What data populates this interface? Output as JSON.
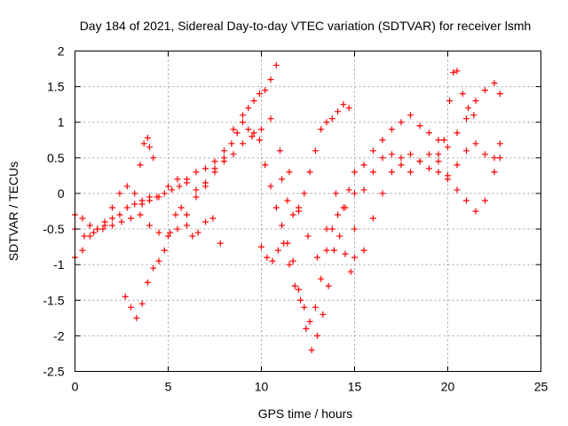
{
  "chart_data": {
    "type": "scatter",
    "title": "Day 184 of 2021, Sidereal Day-to-day VTEC variation (SDTVAR) for receiver lsmh",
    "xlabel": "GPS time / hours",
    "ylabel": "SDTVAR / TECUs",
    "xlim": [
      0,
      25
    ],
    "ylim": [
      -2.5,
      2
    ],
    "xticks": [
      "0",
      "5",
      "10",
      "15",
      "20",
      "25"
    ],
    "yticks": [
      "-2.5",
      "-2",
      "-1.5",
      "-1",
      "-0.5",
      "0",
      "0.5",
      "1",
      "1.5",
      "2"
    ],
    "grid": true,
    "marker": "plus",
    "color": "#ff0000",
    "series": [
      {
        "x": [
          0,
          0.4,
          0.8,
          1.2,
          1.6,
          2,
          2.4,
          2.8,
          3.2,
          3.6,
          4,
          4.5,
          5,
          5.5,
          6,
          6.5,
          7,
          7.5,
          8,
          8.4,
          8.7,
          9,
          9.3,
          9.6,
          9.9,
          10.2,
          10.5,
          10.8,
          11.1,
          11.4,
          11.7,
          12,
          12.3,
          12.6,
          12.9,
          13.2,
          13.5,
          13.8,
          14.1,
          14.4,
          14.7,
          15,
          15.5,
          16,
          16.5,
          17,
          17.5,
          18,
          18.5,
          19,
          19.5,
          20,
          20.5,
          21,
          21.5,
          22,
          22.5,
          22.8
        ],
        "y": [
          -0.9,
          -0.8,
          -0.6,
          -0.5,
          -0.4,
          -0.2,
          0.0,
          0.1,
          0.0,
          -0.15,
          -0.1,
          -0.05,
          0.1,
          0.2,
          0.15,
          0.05,
          0.1,
          0.35,
          0.5,
          0.7,
          0.85,
          1.0,
          0.9,
          0.85,
          0.75,
          0.4,
          0.1,
          -0.2,
          -0.45,
          -0.7,
          -0.95,
          -1.35,
          -1.6,
          -1.8,
          -1.6,
          -1.2,
          -0.8,
          -0.5,
          -0.3,
          -0.2,
          0.05,
          0.0,
          0.05,
          0.3,
          0.5,
          0.55,
          0.4,
          0.3,
          0.45,
          0.55,
          0.45,
          0.2,
          0.05,
          -0.1,
          -0.25,
          -0.1,
          0.3,
          0.5
        ]
      },
      {
        "x": [
          0,
          0.4,
          0.8,
          1.2,
          1.6,
          2,
          2.4,
          2.8,
          3.2,
          3.6,
          4,
          4.4,
          4.8,
          5.2,
          5.6,
          6,
          6.5,
          7,
          7.5,
          8,
          8.5,
          9,
          9.3,
          9.6,
          9.9,
          10.2,
          10.5,
          10.8,
          11.1,
          11.4,
          11.7,
          12,
          12.3,
          12.6,
          12.9,
          13.2,
          13.5,
          13.8,
          14.1,
          14.4,
          14.7,
          15,
          15.5,
          16,
          16.5,
          17,
          17.5,
          18,
          18.5,
          19,
          19.5,
          20,
          20.5,
          21,
          21.5,
          22,
          22.5,
          22.8
        ],
        "y": [
          -0.3,
          -0.35,
          -0.45,
          -0.5,
          -0.45,
          -0.35,
          -0.3,
          -0.2,
          -0.15,
          -0.1,
          -0.05,
          -0.05,
          0.0,
          0.05,
          0.1,
          0.2,
          0.3,
          0.35,
          0.45,
          0.6,
          0.9,
          1.1,
          1.2,
          1.3,
          1.4,
          1.45,
          1.6,
          1.8,
          0.2,
          -0.1,
          -0.3,
          -0.25,
          0.0,
          0.3,
          0.6,
          0.9,
          1.0,
          1.05,
          1.15,
          1.25,
          1.2,
          0.3,
          0.4,
          0.6,
          0.75,
          0.9,
          1.0,
          1.1,
          0.95,
          0.85,
          0.75,
          0.65,
          0.85,
          1.05,
          1.3,
          1.45,
          1.55,
          1.4
        ]
      },
      {
        "x": [
          0,
          0.5,
          1,
          1.5,
          2,
          2.5,
          3,
          3.5,
          4,
          4.5,
          5,
          5.5,
          6,
          6.5,
          7,
          7.5,
          8,
          8.5,
          9,
          9.5,
          10,
          10.5,
          11,
          11.5,
          12,
          12.5,
          13,
          13.5,
          14,
          14.5,
          15,
          15.5,
          16,
          16.5,
          17,
          17.5,
          18,
          18.5,
          19,
          19.5,
          20,
          20.5,
          21,
          21.5,
          22,
          22.5,
          22.8
        ],
        "y": [
          -0.5,
          -0.6,
          -0.55,
          -0.5,
          -0.45,
          -0.4,
          -0.35,
          -0.3,
          -0.45,
          -0.55,
          -0.6,
          -0.5,
          -0.3,
          -0.05,
          0.15,
          0.3,
          0.45,
          0.55,
          0.7,
          0.8,
          0.9,
          1.05,
          0.6,
          0.3,
          -0.2,
          -0.6,
          -0.9,
          -0.5,
          0.0,
          -0.2,
          -0.5,
          -0.8,
          -0.35,
          0.0,
          0.3,
          0.5,
          0.55,
          0.45,
          0.35,
          0.3,
          0.25,
          0.4,
          0.6,
          0.7,
          0.55,
          0.5,
          0.7
        ]
      },
      {
        "x": [
          2.7,
          3.0,
          3.3,
          3.6,
          3.9,
          4.2,
          4.5,
          4.8,
          5.1,
          5.4,
          5.7,
          6.0,
          6.3,
          6.6,
          7.0,
          7.4,
          7.8
        ],
        "y": [
          -1.45,
          -1.6,
          -1.75,
          -1.55,
          -1.25,
          -1.05,
          -0.95,
          -0.8,
          -0.55,
          -0.3,
          -0.2,
          -0.45,
          -0.6,
          -0.55,
          -0.4,
          -0.35,
          -0.7
        ]
      },
      {
        "x": [
          10.0,
          10.3,
          10.6,
          10.9,
          11.2,
          11.5,
          11.8,
          12.1,
          12.4,
          12.7,
          13.0,
          13.3,
          13.6,
          13.9,
          14.2,
          14.5,
          14.8,
          15.0
        ],
        "y": [
          -0.75,
          -0.9,
          -0.95,
          -0.8,
          -0.7,
          -1.0,
          -1.3,
          -1.5,
          -1.9,
          -2.2,
          -2.0,
          -1.7,
          -1.3,
          -0.8,
          -0.6,
          -0.85,
          -1.1,
          -0.9
        ]
      },
      {
        "x": [
          3.5,
          3.7,
          3.9,
          4.0,
          4.2
        ],
        "y": [
          0.4,
          0.7,
          0.78,
          0.65,
          0.5
        ]
      },
      {
        "x": [
          19.5,
          19.8,
          20.1,
          20.3,
          20.5,
          20.8,
          21.1,
          21.4
        ],
        "y": [
          0.55,
          0.75,
          1.3,
          1.7,
          1.72,
          1.4,
          1.2,
          1.1
        ]
      }
    ]
  }
}
